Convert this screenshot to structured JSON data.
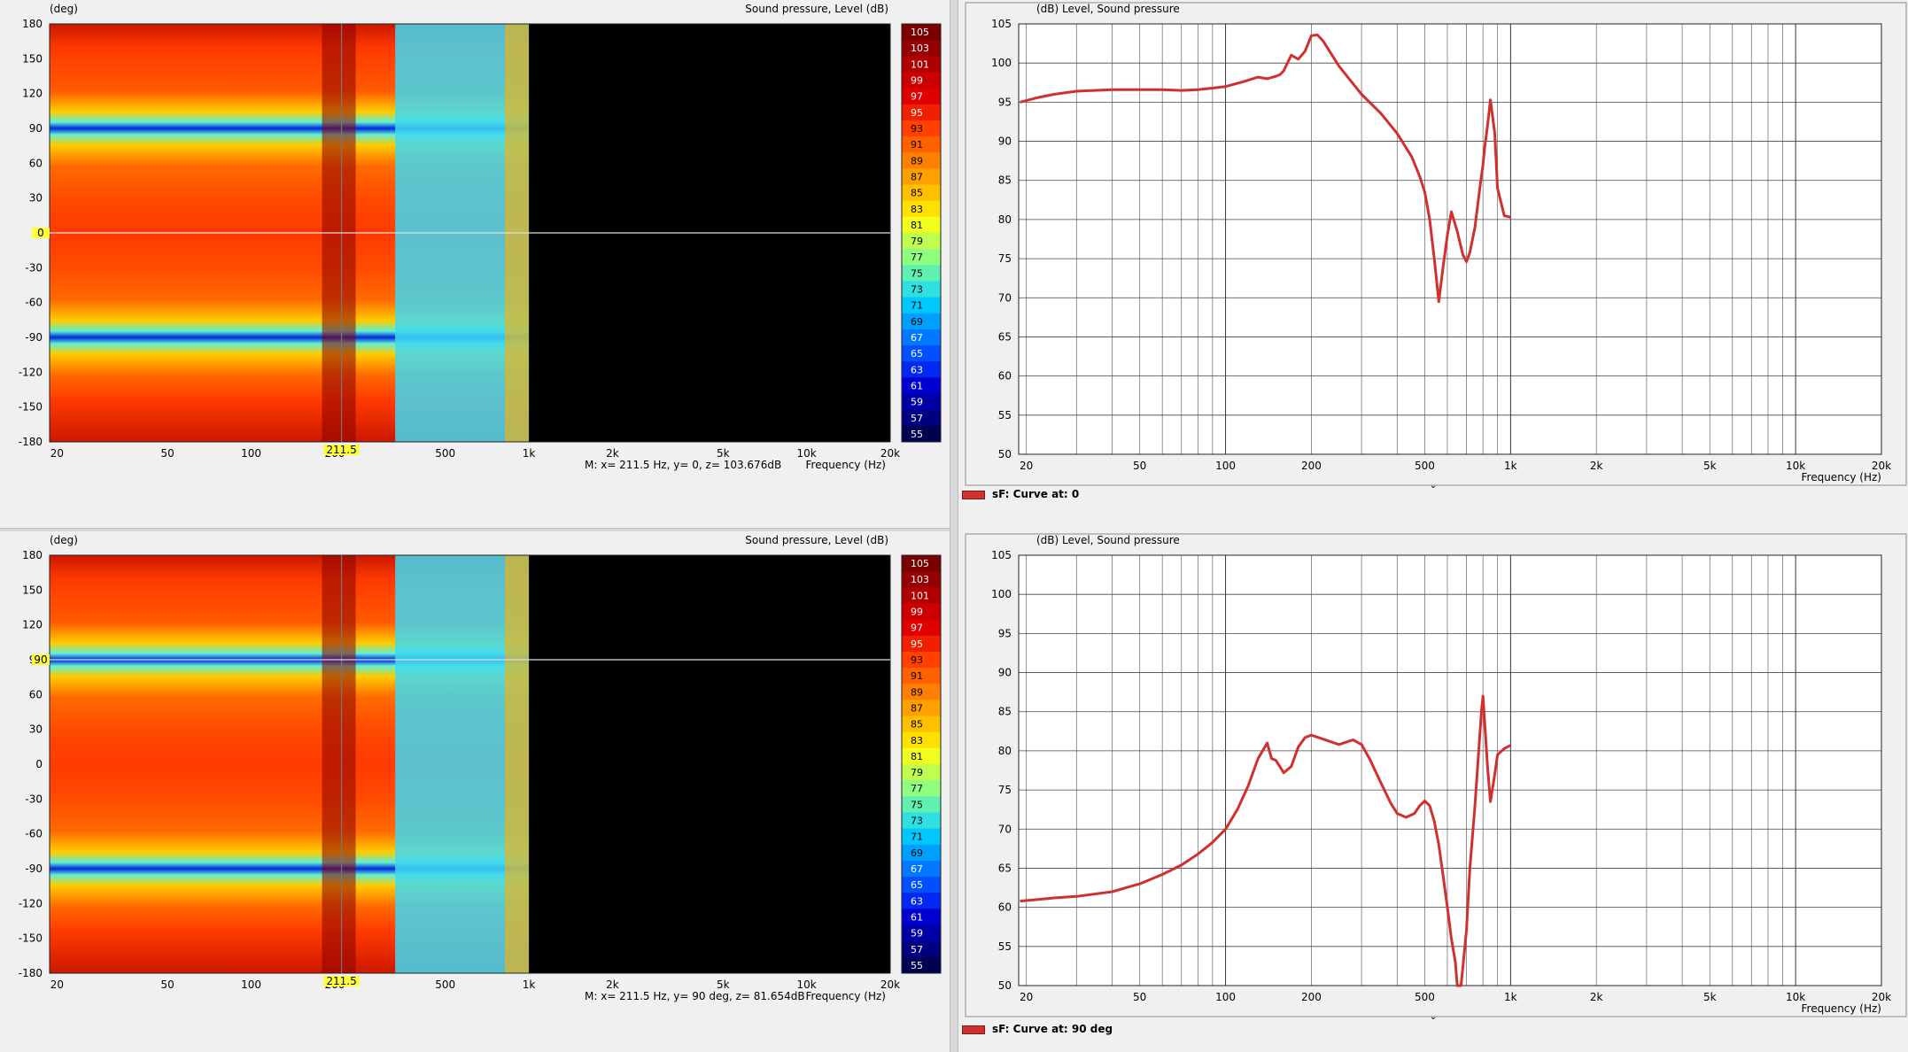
{
  "directivity_maps": [
    {
      "y_unit": "(deg)",
      "title": "Sound pressure, Level  (dB)",
      "y_ticks": [
        "180",
        "150",
        "120",
        "90",
        "60",
        "30",
        "0",
        "-30",
        "-60",
        "-90",
        "-120",
        "-150",
        "-180"
      ],
      "x_ticks": [
        "20",
        "50",
        "100",
        "200",
        "500",
        "1k",
        "2k",
        "5k",
        "10k",
        "20k"
      ],
      "x_label": "Frequency  (Hz)",
      "marker_x_label": "211.5",
      "marker_y_label": "0",
      "readout": "M:  x= 211.5 Hz,  y= 0, z= 103.676dB",
      "marker_y_deg": 0
    },
    {
      "y_unit": "(deg)",
      "title": "Sound pressure, Level  (dB)",
      "y_ticks": [
        "180",
        "150",
        "120",
        "90",
        "60",
        "30",
        "0",
        "-30",
        "-60",
        "-90",
        "-120",
        "-150",
        "-180"
      ],
      "x_ticks": [
        "20",
        "50",
        "100",
        "200",
        "500",
        "1k",
        "2k",
        "5k",
        "10k",
        "20k"
      ],
      "x_label": "Frequency  (Hz)",
      "marker_x_label": "211.5",
      "marker_y_label": "90",
      "readout": "M:  x= 211.5 Hz,  y= 90 deg, z= 81.654dB",
      "marker_y_deg": 90
    }
  ],
  "colorbar": {
    "labels": [
      "105",
      "103",
      "101",
      "99",
      "97",
      "95",
      "93",
      "91",
      "89",
      "87",
      "85",
      "83",
      "81",
      "79",
      "77",
      "75",
      "73",
      "71",
      "69",
      "67",
      "65",
      "63",
      "61",
      "59",
      "57",
      "55"
    ],
    "colors": [
      "#7a0000",
      "#950000",
      "#b00000",
      "#cc0000",
      "#e00000",
      "#f02000",
      "#ff4000",
      "#ff6000",
      "#ff8000",
      "#ffa000",
      "#ffc000",
      "#ffe000",
      "#f0ff20",
      "#c0ff50",
      "#90ff80",
      "#60f0b0",
      "#30e0e0",
      "#00c8ff",
      "#00a0ff",
      "#0078ff",
      "#0050ff",
      "#0028f0",
      "#0000d0",
      "#0000a8",
      "#000080",
      "#000050"
    ]
  },
  "chart_data": [
    {
      "type": "line",
      "title": "Level, Sound pressure",
      "ylabel": "(dB)",
      "xlabel": "Frequency  (Hz)",
      "x_scale": "log",
      "xlim": [
        18.8,
        20000
      ],
      "ylim": [
        50,
        105
      ],
      "y_ticks": [
        "105",
        "100",
        "95",
        "90",
        "85",
        "80",
        "75",
        "70",
        "65",
        "60",
        "55",
        "50"
      ],
      "x_ticks": [
        "20",
        "50",
        "100",
        "200",
        "500",
        "1k",
        "2k",
        "5k",
        "10k",
        "20k"
      ],
      "legend": "sF: Curve at: 0",
      "legend_position": "bottom-left",
      "grid": true,
      "series": [
        {
          "name": "sF: Curve at: 0",
          "color": "#d0302e",
          "x": [
            19,
            22,
            25,
            30,
            40,
            50,
            60,
            70,
            80,
            90,
            100,
            115,
            130,
            140,
            150,
            155,
            160,
            170,
            180,
            190,
            200,
            210,
            220,
            250,
            300,
            350,
            400,
            450,
            480,
            500,
            520,
            540,
            560,
            580,
            600,
            620,
            650,
            680,
            700,
            720,
            750,
            780,
            800,
            810,
            830,
            850,
            880,
            900,
            950,
            1000
          ],
          "y": [
            95,
            95.6,
            96,
            96.4,
            96.6,
            96.6,
            96.6,
            96.5,
            96.6,
            96.8,
            97,
            97.6,
            98.2,
            98,
            98.3,
            98.5,
            99,
            101,
            100.5,
            101.5,
            103.5,
            103.6,
            102.8,
            99.6,
            96,
            93.6,
            91,
            88,
            85.5,
            83.5,
            80,
            75,
            69.5,
            74,
            78,
            81,
            78.5,
            75.5,
            74.6,
            75.8,
            79,
            84,
            87,
            89,
            92,
            95.3,
            91,
            84,
            80.5,
            80.3
          ]
        }
      ]
    },
    {
      "type": "line",
      "title": "Level, Sound pressure",
      "ylabel": "(dB)",
      "xlabel": "Frequency  (Hz)",
      "x_scale": "log",
      "xlim": [
        18.8,
        20000
      ],
      "ylim": [
        50,
        105
      ],
      "y_ticks": [
        "105",
        "100",
        "95",
        "90",
        "85",
        "80",
        "75",
        "70",
        "65",
        "60",
        "55",
        "50"
      ],
      "x_ticks": [
        "20",
        "50",
        "100",
        "200",
        "500",
        "1k",
        "2k",
        "5k",
        "10k",
        "20k"
      ],
      "legend": "sF: Curve at: 90 deg",
      "legend_position": "bottom-left",
      "grid": true,
      "series": [
        {
          "name": "sF: Curve at: 90 deg",
          "color": "#d0302e",
          "x": [
            19,
            22,
            25,
            30,
            40,
            50,
            60,
            70,
            80,
            90,
            100,
            110,
            120,
            130,
            140,
            145,
            150,
            155,
            160,
            170,
            180,
            190,
            200,
            220,
            250,
            280,
            300,
            320,
            350,
            380,
            400,
            430,
            460,
            480,
            500,
            520,
            540,
            560,
            580,
            600,
            620,
            640,
            650,
            670,
            700,
            720,
            750,
            780,
            790,
            800,
            810,
            830,
            850,
            880,
            900,
            950,
            1000
          ],
          "y": [
            60.8,
            61,
            61.2,
            61.4,
            62,
            63,
            64.2,
            65.4,
            66.8,
            68.3,
            70,
            72.5,
            75.5,
            79,
            81,
            79,
            78.8,
            78,
            77.2,
            78,
            80.5,
            81.7,
            82,
            81.5,
            80.8,
            81.4,
            80.8,
            79,
            76,
            73.3,
            72,
            71.5,
            72,
            73,
            73.6,
            73,
            71,
            68,
            64,
            60,
            56,
            53,
            50,
            50,
            57,
            65,
            73,
            82,
            85,
            87,
            84,
            78,
            73.5,
            77,
            79.5,
            80.3,
            80.7
          ]
        }
      ]
    }
  ]
}
